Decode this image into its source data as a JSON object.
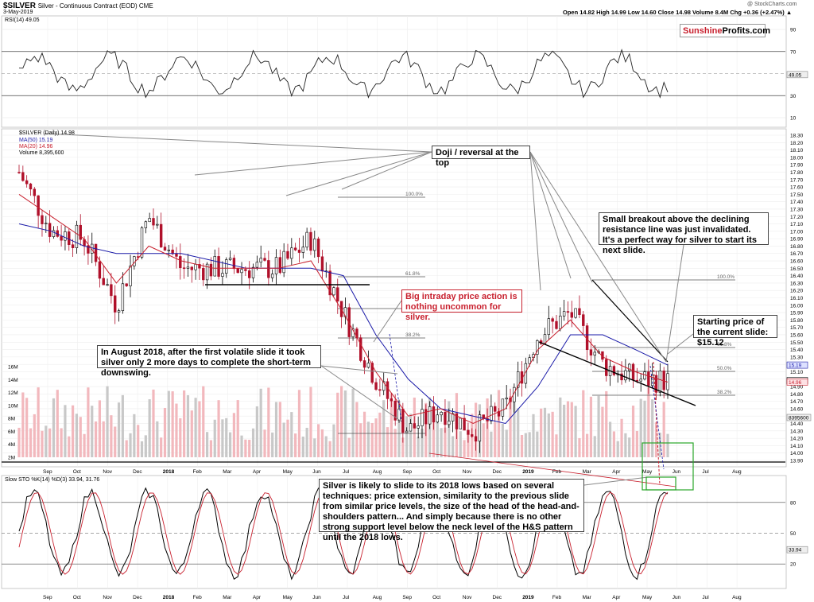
{
  "header": {
    "symbol": "$SILVER",
    "description": "Silver - Continuous Contract (EOD)  CME",
    "date": "3-May-2019",
    "ohlc": "Open 14.82  High 14.99  Low 14.60  Close 14.98  Volume 8.4M  Chg +0.36 (+2.47%) ▲",
    "credit": "@ StockCharts.com"
  },
  "branding": {
    "part1": "Sunshine",
    "part2": "Profits.com"
  },
  "rsi_panel": {
    "label": "RSI(14) 49.05",
    "ticks": [
      "90",
      "70",
      "50",
      "30",
      "10"
    ],
    "value_box": "49.05"
  },
  "price_panel": {
    "legend_main": "$SILVER (Daily) 14.98",
    "legend_ma50": "MA(50) 15.19",
    "legend_ma20": "MA(20) 14.96",
    "legend_volume": "Volume 8,395,600",
    "price_ticks": [
      "18.30",
      "18.20",
      "18.10",
      "18.00",
      "17.90",
      "17.80",
      "17.70",
      "17.60",
      "17.50",
      "17.40",
      "17.30",
      "17.20",
      "17.10",
      "17.00",
      "16.90",
      "16.80",
      "16.70",
      "16.60",
      "16.50",
      "16.40",
      "16.30",
      "16.20",
      "16.10",
      "16.00",
      "15.90",
      "15.80",
      "15.70",
      "15.60",
      "15.50",
      "15.40",
      "15.30",
      "15.20",
      "15.10",
      "15.00",
      "14.90",
      "14.80",
      "14.70",
      "14.60",
      "14.50",
      "14.40",
      "14.30",
      "14.20",
      "14.10",
      "14.00",
      "13.90"
    ],
    "volume_ticks": [
      "16M",
      "14M",
      "12M",
      "10M",
      "8M",
      "6M",
      "4M",
      "2M"
    ],
    "price_boxes": [
      "15.19",
      "14.98",
      "14.96",
      "8395600"
    ],
    "fib_first": [
      "100.0%",
      "61.8%",
      "50.0%",
      "38.2%"
    ],
    "fib_second": [
      "100.0%",
      "61.8%",
      "50.0%",
      "38.2%"
    ]
  },
  "sto_panel": {
    "label": "Slow STO %K(14) %D(3) 33.94, 31.76",
    "ticks": [
      "80",
      "50",
      "20"
    ],
    "value_box": "33.94"
  },
  "x_axis": {
    "labels": [
      "Sep",
      "Oct",
      "Nov",
      "Dec",
      "2018",
      "Feb",
      "Mar",
      "Apr",
      "May",
      "Jun",
      "Jul",
      "Aug",
      "Sep",
      "Oct",
      "Nov",
      "Dec",
      "2019",
      "Feb",
      "Mar",
      "Apr",
      "May",
      "Jun",
      "Jul",
      "Aug"
    ]
  },
  "annotations": {
    "doji": "Doji / reversal at the top",
    "breakout": "Small breakout above the declining resistance line was just invalidated. It's a perfect way for silver to start its next slide.",
    "starting_price": "Starting price of the current slide: $15.12",
    "big_intraday": "Big intraday price action is nothing uncommon for silver.",
    "august": "In August 2018, after the first volatile slide it took silver only 2 more days to complete the short-term downswing.",
    "forecast": "Silver is likely to slide to its 2018 lows based on several techniques: price extension, similarity to the previous slide from similar price levels, the size of the head of the head-and-shoulders pattern... And simply because there is no other strong support level below the neck level of the H&S pattern until the 2018 lows."
  },
  "chart_data": {
    "type": "line",
    "title": "$SILVER Silver - Continuous Contract (EOD)",
    "x": [
      "Sep 2017",
      "Oct 2017",
      "Nov 2017",
      "Dec 2017",
      "Jan 2018",
      "Feb 2018",
      "Mar 2018",
      "Apr 2018",
      "May 2018",
      "Jun 2018",
      "Jul 2018",
      "Aug 2018",
      "Sep 2018",
      "Oct 2018",
      "Nov 2018",
      "Dec 2018",
      "Jan 2019",
      "Feb 2019",
      "Mar 2019",
      "Apr 2019",
      "May 2019"
    ],
    "series": [
      {
        "name": "$SILVER (Daily) 14.98",
        "values": [
          17.8,
          17.0,
          16.9,
          16.0,
          17.2,
          16.5,
          16.5,
          16.5,
          16.5,
          16.9,
          15.9,
          15.0,
          14.3,
          14.6,
          14.3,
          14.6,
          15.6,
          15.9,
          15.2,
          15.0,
          14.98
        ]
      },
      {
        "name": "MA(50) 15.19",
        "values": [
          17.1,
          17.0,
          16.8,
          16.7,
          16.7,
          16.7,
          16.6,
          16.5,
          16.5,
          16.5,
          16.4,
          15.6,
          15.0,
          14.6,
          14.5,
          14.4,
          14.9,
          15.6,
          15.6,
          15.4,
          15.19
        ]
      },
      {
        "name": "MA(20) 14.96",
        "values": [
          17.5,
          17.2,
          16.9,
          16.3,
          16.8,
          16.6,
          16.5,
          16.5,
          16.5,
          16.6,
          15.9,
          15.1,
          14.5,
          14.6,
          14.4,
          14.6,
          15.4,
          15.8,
          15.3,
          15.1,
          14.96
        ]
      }
    ],
    "ylim": [
      13.9,
      18.3
    ],
    "rsi_last": 49.05,
    "sto_k_last": 33.94,
    "sto_d_last": 31.76
  }
}
